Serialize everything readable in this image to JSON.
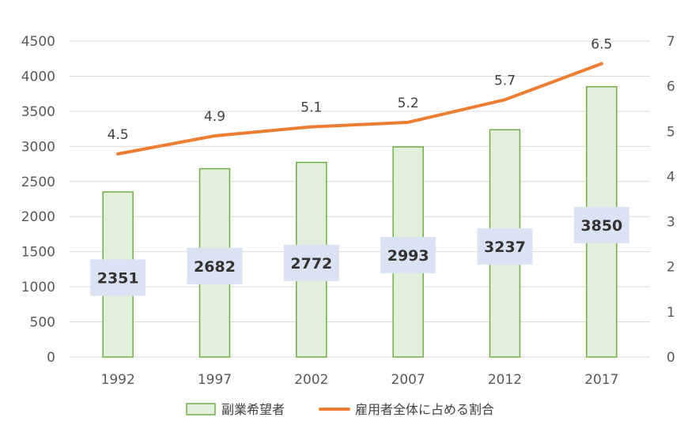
{
  "chart_data": {
    "type": "bar",
    "categories": [
      "1992",
      "1997",
      "2002",
      "2007",
      "2012",
      "2017"
    ],
    "series": [
      {
        "name": "副業希望者",
        "type": "bar",
        "axis": "left",
        "values": [
          2351,
          2682,
          2772,
          2993,
          3237,
          3850
        ],
        "color": "#e2efda",
        "stroke": "#70ad47"
      },
      {
        "name": "雇用者全体に占める割合",
        "type": "line",
        "axis": "right",
        "values": [
          4.5,
          4.9,
          5.1,
          5.2,
          5.7,
          6.5
        ],
        "color": "#ed7d31"
      }
    ],
    "y_left": {
      "ticks": [
        "0",
        "500",
        "1000",
        "1500",
        "2000",
        "2500",
        "3000",
        "3500",
        "4000",
        "4500"
      ],
      "lim": [
        0,
        4500
      ]
    },
    "y_right": {
      "ticks": [
        "0",
        "1",
        "2",
        "3",
        "4",
        "5",
        "6",
        "7"
      ],
      "lim": [
        0,
        7
      ]
    },
    "bar_labels": [
      "2351",
      "2682",
      "2772",
      "2993",
      "3237",
      "3850"
    ],
    "line_labels": [
      "4.5",
      "4.9",
      "5.1",
      "5.2",
      "5.7",
      "6.5"
    ],
    "bar_label_bg": "#dae3f3",
    "grid": true,
    "legend_position": "bottom",
    "legend": [
      {
        "label": "副業希望者",
        "kind": "bar"
      },
      {
        "label": "雇用者全体に占める割合",
        "kind": "line"
      }
    ]
  }
}
